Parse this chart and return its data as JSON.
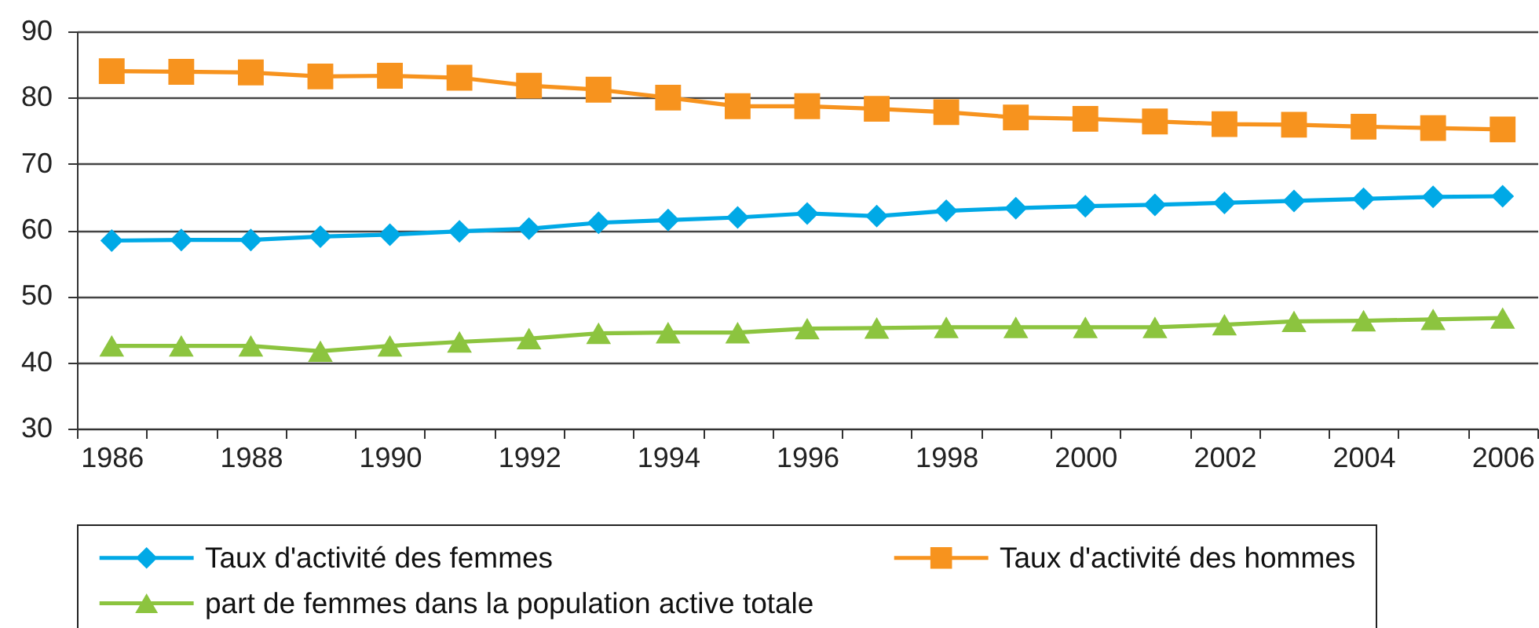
{
  "chart_data": {
    "type": "line",
    "categories": [
      "1986",
      null,
      "1988",
      null,
      "1990",
      null,
      "1992",
      null,
      "1994",
      null,
      "1996",
      null,
      "1998",
      null,
      "2000",
      null,
      "2002",
      null,
      "2004",
      null,
      "2006"
    ],
    "series": [
      {
        "name": "Taux d'activité des femmes",
        "color": "#00a9e6",
        "marker": "diamond",
        "values": [
          58.4,
          58.5,
          58.5,
          59.0,
          59.3,
          59.8,
          60.2,
          61.1,
          61.5,
          61.9,
          62.5,
          62.1,
          62.9,
          63.3,
          63.6,
          63.8,
          64.1,
          64.4,
          64.7,
          65.0,
          65.1
        ]
      },
      {
        "name": "Taux d'activité des hommes",
        "color": "#f7931e",
        "marker": "square",
        "values": [
          84.0,
          83.9,
          83.8,
          83.2,
          83.3,
          83.0,
          81.8,
          81.2,
          80.0,
          78.7,
          78.7,
          78.3,
          77.8,
          77.0,
          76.8,
          76.4,
          76.0,
          75.9,
          75.6,
          75.4,
          75.2
        ]
      },
      {
        "name": "part de femmes dans la population active totale",
        "color": "#8cc43f",
        "marker": "triangle",
        "values": [
          42.5,
          42.5,
          42.5,
          41.7,
          42.5,
          43.1,
          43.6,
          44.4,
          44.5,
          44.5,
          45.1,
          45.2,
          45.3,
          45.3,
          45.3,
          45.3,
          45.7,
          46.2,
          46.3,
          46.5,
          46.7
        ]
      }
    ],
    "ylim": [
      30,
      90
    ],
    "yticks": [
      30,
      40,
      50,
      60,
      70,
      80,
      90
    ],
    "grid": "y",
    "legend": "bottom",
    "line_style": "solid"
  }
}
